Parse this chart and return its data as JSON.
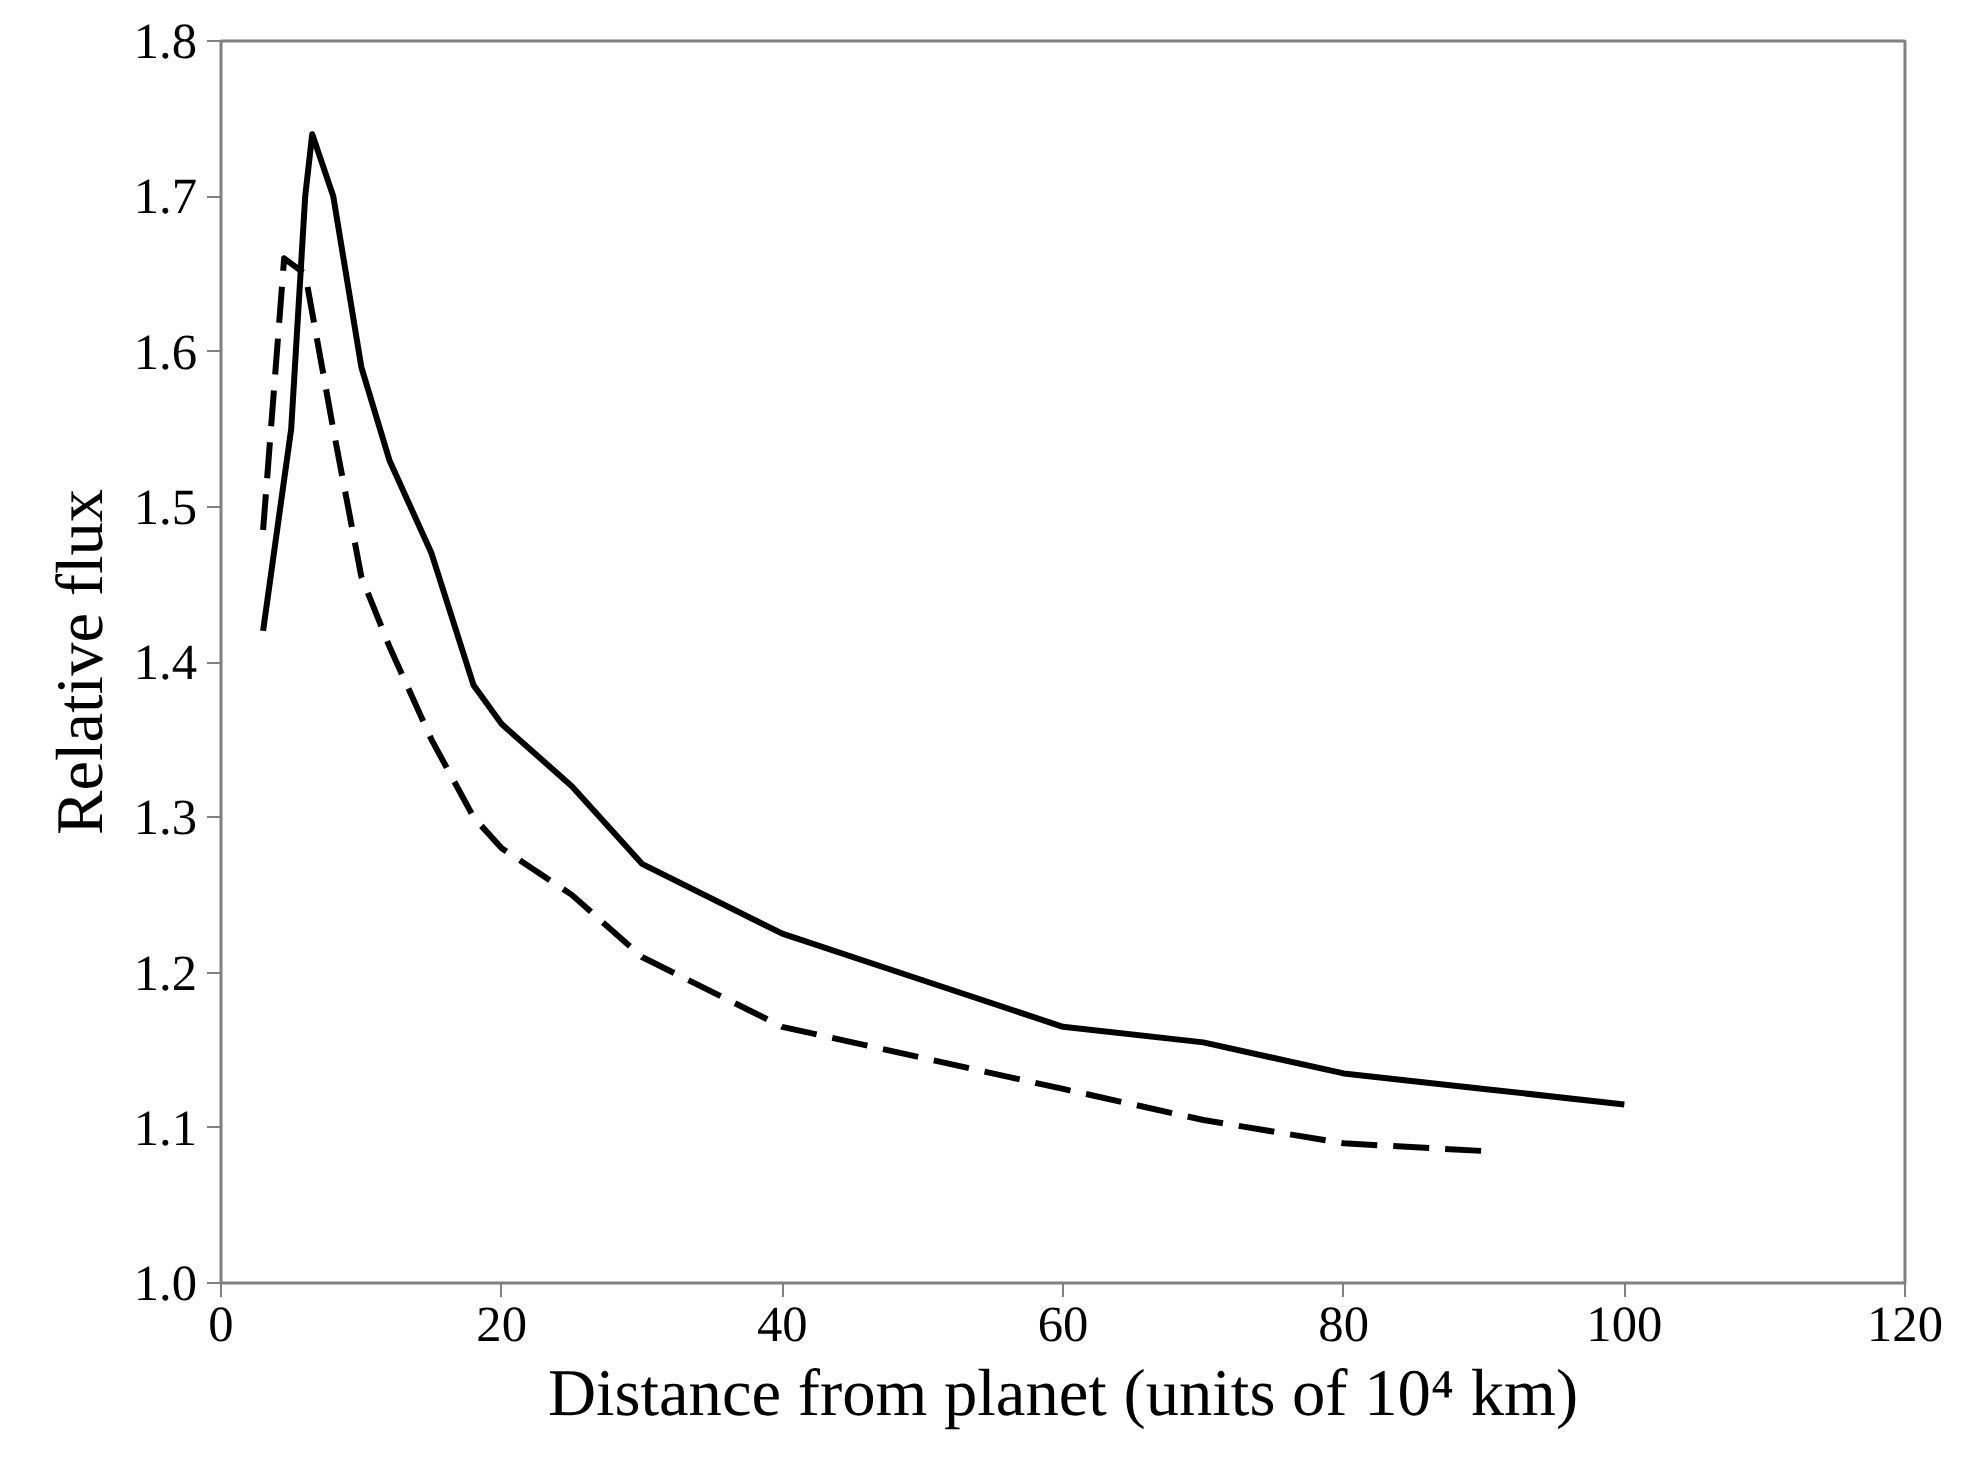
{
  "chart_data": {
    "type": "line",
    "xlabel": "Distance from planet (units of 10⁴ km)",
    "ylabel": "Relative flux",
    "xlim": [
      0,
      120
    ],
    "ylim": [
      1.0,
      1.8
    ],
    "xticks": [
      0,
      20,
      40,
      60,
      80,
      100,
      120
    ],
    "yticks": [
      {
        "value": 1.0,
        "label": "1.0"
      },
      {
        "value": 1.1,
        "label": "1.1"
      },
      {
        "value": 1.2,
        "label": "1.2"
      },
      {
        "value": 1.3,
        "label": "1.3"
      },
      {
        "value": 1.4,
        "label": "1.4"
      },
      {
        "value": 1.5,
        "label": "1.5"
      },
      {
        "value": 1.6,
        "label": "1.6"
      },
      {
        "value": 1.7,
        "label": "1.7"
      },
      {
        "value": 1.8,
        "label": "1.8"
      }
    ],
    "grid": false,
    "marker": "none",
    "series": [
      {
        "color": "#000000",
        "line_style": "solid",
        "x": [
          3,
          5,
          6,
          6.5,
          8,
          10,
          12,
          15,
          18,
          20,
          25,
          30,
          40,
          50,
          60,
          70,
          80,
          90,
          100
        ],
        "values": [
          1.42,
          1.55,
          1.7,
          1.74,
          1.7,
          1.59,
          1.53,
          1.47,
          1.385,
          1.36,
          1.32,
          1.27,
          1.225,
          1.195,
          1.165,
          1.155,
          1.135,
          1.125,
          1.115
        ]
      },
      {
        "color": "#000000",
        "line_style": "dashed",
        "x": [
          3,
          4.5,
          6,
          8,
          10,
          12,
          15,
          18,
          20,
          25,
          30,
          40,
          50,
          60,
          70,
          80,
          90
        ],
        "values": [
          1.485,
          1.66,
          1.65,
          1.55,
          1.455,
          1.41,
          1.35,
          1.3,
          1.28,
          1.25,
          1.21,
          1.165,
          1.145,
          1.125,
          1.105,
          1.09,
          1.085
        ]
      }
    ]
  }
}
